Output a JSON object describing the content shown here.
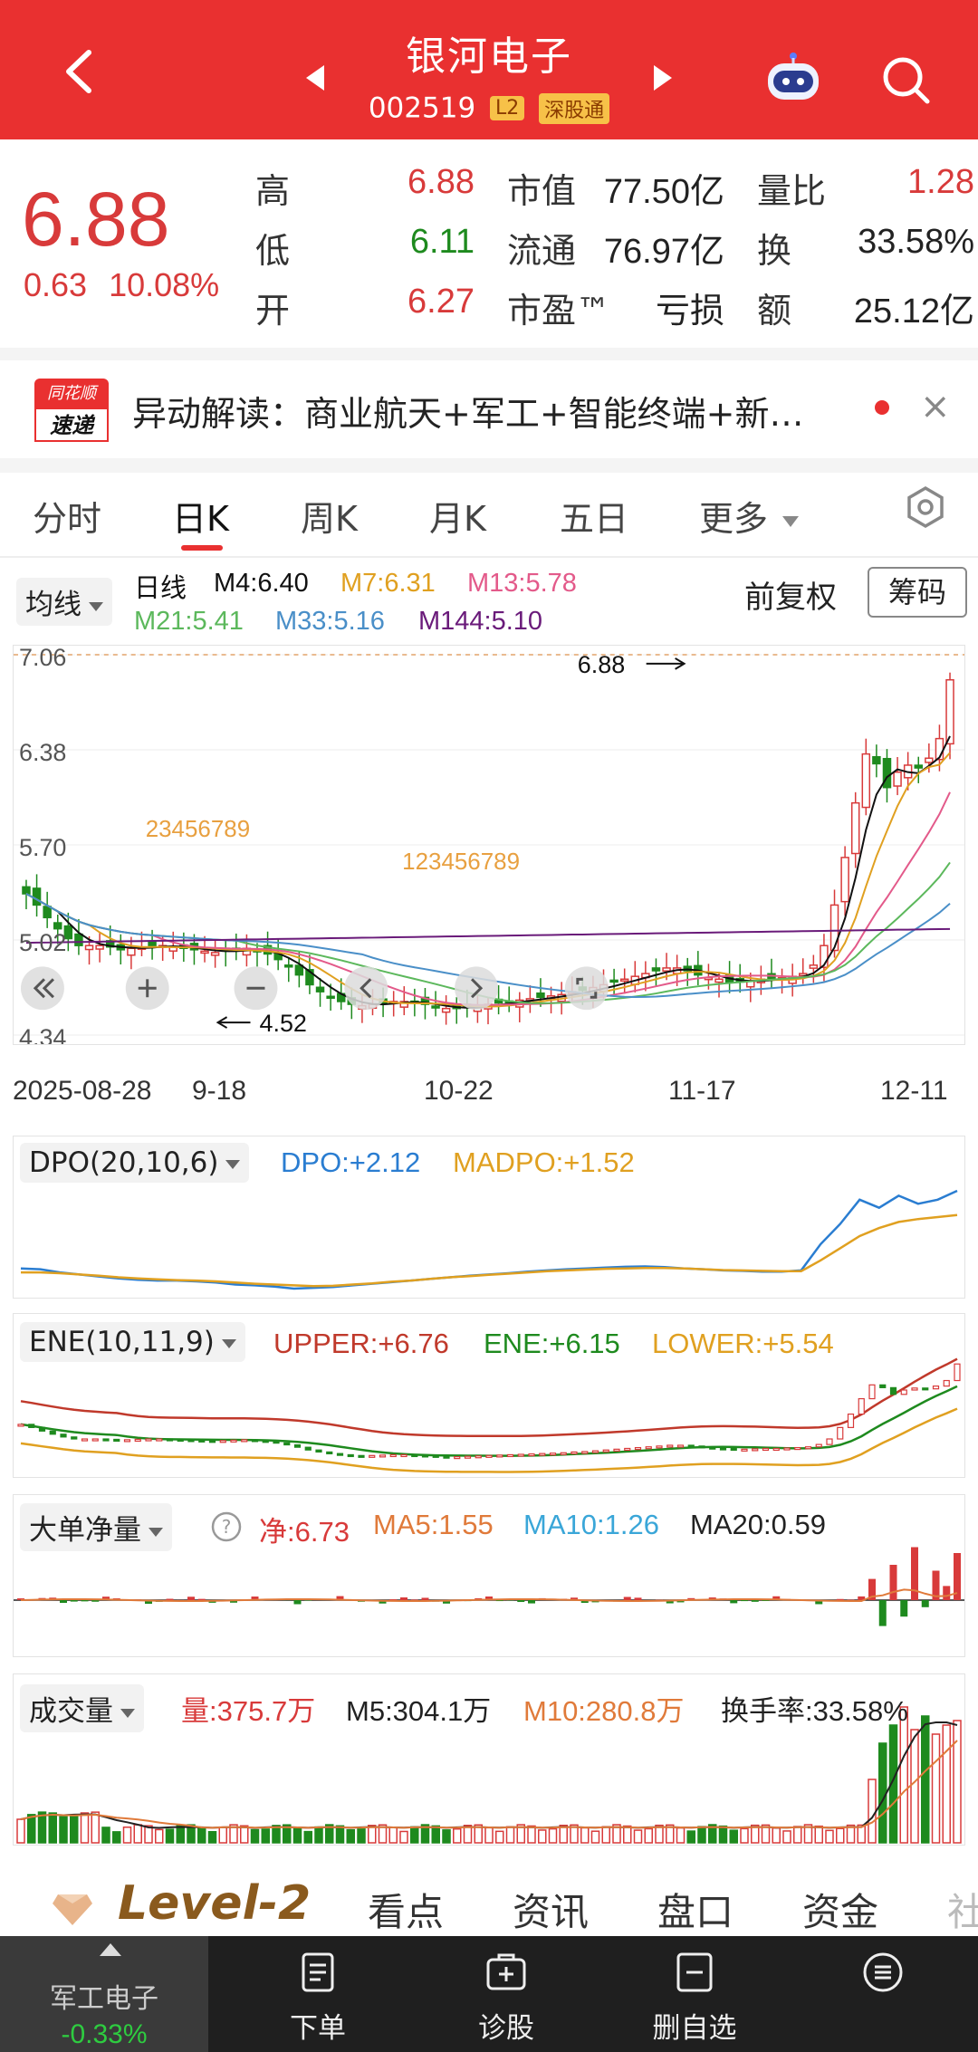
{
  "header": {
    "title": "银河电子",
    "code": "002519",
    "tag_l2": "L2",
    "tag_connect": "深股通",
    "bg_color": "#e93030"
  },
  "quote": {
    "price": "6.88",
    "change": "0.63",
    "change_pct": "10.08%",
    "rows": [
      {
        "label": "高",
        "value": "6.88",
        "m_label": "市值",
        "m_value": "77.50亿",
        "r_label": "量比",
        "r_value": "1.28"
      },
      {
        "label": "低",
        "value": "6.11",
        "m_label": "流通",
        "m_value": "76.97亿",
        "r_label": "换",
        "r_value": "33.58%"
      },
      {
        "label": "开",
        "value": "6.27",
        "m_label": "市盈™",
        "m_value": "亏损",
        "r_label": "额",
        "r_value": "25.12亿"
      }
    ]
  },
  "news": {
    "logo_top": "同花顺",
    "logo_bottom": "速递",
    "text": "异动解读：商业航天+军工+智能终端+新…",
    "close": "×"
  },
  "tabs": [
    "分时",
    "日K",
    "周K",
    "月K",
    "五日",
    "更多"
  ],
  "active_tab": "日K",
  "ma": {
    "selector": "均线",
    "period": "日线",
    "m4": "M4:6.40",
    "m7": "M7:6.31",
    "m13": "M13:5.78",
    "m21": "M21:5.41",
    "m33": "M33:5.16",
    "m144": "M144:5.10",
    "fuquan": "前复权",
    "chouma": "筹码"
  },
  "chart_data": [
    {
      "type": "candlestick",
      "title": "",
      "y_ticks": [
        "7.06",
        "6.38",
        "5.70",
        "5.02",
        "4.34"
      ],
      "ylim": [
        4.34,
        7.06
      ],
      "x_ticks": [
        "2025-08-28",
        "9-18",
        "10-22",
        "11-17",
        "12-11"
      ],
      "annotations": {
        "high_label": "6.88",
        "low_label": "4.52",
        "seq_a": "23456789",
        "seq_b": "123456789"
      },
      "series": [
        {
          "name": "M4",
          "color": "#111111"
        },
        {
          "name": "M7",
          "color": "#e0a020"
        },
        {
          "name": "M13",
          "color": "#e35a8a"
        },
        {
          "name": "M21",
          "color": "#5cb85c"
        },
        {
          "name": "M33",
          "color": "#4a8fc8"
        },
        {
          "name": "M144",
          "color": "#6a1b7a"
        }
      ],
      "closes": [
        5.35,
        5.27,
        5.18,
        5.1,
        5.03,
        4.98,
        4.98,
        4.98,
        4.97,
        4.95,
        4.96,
        4.97,
        4.98,
        4.98,
        4.97,
        4.96,
        4.95,
        4.94,
        4.93,
        4.94,
        4.95,
        4.96,
        4.94,
        4.92,
        4.88,
        4.83,
        4.77,
        4.7,
        4.65,
        4.61,
        4.58,
        4.56,
        4.55,
        4.56,
        4.57,
        4.58,
        4.58,
        4.57,
        4.56,
        4.54,
        4.53,
        4.53,
        4.54,
        4.55,
        4.56,
        4.57,
        4.58,
        4.59,
        4.6,
        4.61,
        4.62,
        4.63,
        4.65,
        4.66,
        4.68,
        4.7,
        4.72,
        4.74,
        4.76,
        4.78,
        4.8,
        4.82,
        4.82,
        4.8,
        4.77,
        4.75,
        4.74,
        4.72,
        4.72,
        4.73,
        4.74,
        4.74,
        4.75,
        4.76,
        4.78,
        4.84,
        4.98,
        5.27,
        5.61,
        6.0,
        6.35,
        6.28,
        6.11,
        6.22,
        6.27,
        6.25,
        6.32,
        6.46,
        6.88
      ]
    },
    {
      "type": "line",
      "name": "DPO(20,10,6)",
      "dpo_label": "DPO:+2.12",
      "madpo_label": "MADPO:+1.52",
      "series": [
        {
          "name": "DPO",
          "color": "#2a7dd1",
          "values": [
            0.2,
            0.18,
            0.1,
            0.05,
            0.0,
            -0.05,
            -0.08,
            -0.1,
            -0.1,
            -0.12,
            -0.15,
            -0.2,
            -0.22,
            -0.25,
            -0.3,
            -0.28,
            -0.26,
            -0.22,
            -0.18,
            -0.14,
            -0.1,
            -0.06,
            -0.02,
            0.02,
            0.05,
            0.08,
            0.12,
            0.15,
            0.18,
            0.2,
            0.22,
            0.24,
            0.25,
            0.23,
            0.2,
            0.18,
            0.15,
            0.14,
            0.12,
            0.12,
            0.15,
            0.8,
            1.3,
            1.9,
            1.7,
            2.0,
            1.8,
            1.9,
            2.12
          ]
        },
        {
          "name": "MADPO",
          "color": "#e0a020",
          "values": [
            0.1,
            0.1,
            0.08,
            0.05,
            0.02,
            -0.02,
            -0.05,
            -0.07,
            -0.09,
            -0.1,
            -0.12,
            -0.15,
            -0.18,
            -0.2,
            -0.22,
            -0.24,
            -0.23,
            -0.2,
            -0.17,
            -0.13,
            -0.1,
            -0.06,
            -0.02,
            0.01,
            0.04,
            0.07,
            0.1,
            0.13,
            0.15,
            0.17,
            0.19,
            0.2,
            0.21,
            0.21,
            0.2,
            0.18,
            0.16,
            0.15,
            0.14,
            0.13,
            0.13,
            0.4,
            0.7,
            1.0,
            1.2,
            1.35,
            1.42,
            1.47,
            1.52
          ]
        }
      ]
    },
    {
      "type": "line",
      "name": "ENE(10,11,9)",
      "upper_label": "UPPER:+6.76",
      "ene_label": "ENE:+6.15",
      "lower_label": "LOWER:+5.54",
      "series": [
        {
          "name": "UPPER",
          "color": "#c0392b"
        },
        {
          "name": "ENE",
          "color": "#1e8a1e"
        },
        {
          "name": "LOWER",
          "color": "#e0a020"
        }
      ]
    },
    {
      "type": "bar",
      "name": "大单净量",
      "net_label": "净:6.73",
      "ma5_label": "MA5:1.55",
      "ma10_label": "MA10:1.26",
      "ma20_label": "MA20:0.59"
    },
    {
      "type": "bar",
      "name": "成交量",
      "vol_label": "量:375.7万",
      "m5_label": "M5:304.1万",
      "m10_label": "M10:280.8万",
      "turnover_label": "换手率:33.58%"
    }
  ],
  "level2": {
    "brand": "Level-2",
    "items": [
      "看点",
      "资讯",
      "盘口",
      "资金",
      "社"
    ]
  },
  "bottom_nav": {
    "sector_name": "军工电子",
    "sector_pct": "-0.33%",
    "items": [
      "下单",
      "诊股",
      "删自选"
    ]
  },
  "colors": {
    "up": "#d83a3a",
    "down": "#1e8a1e",
    "accent": "#e93030"
  }
}
